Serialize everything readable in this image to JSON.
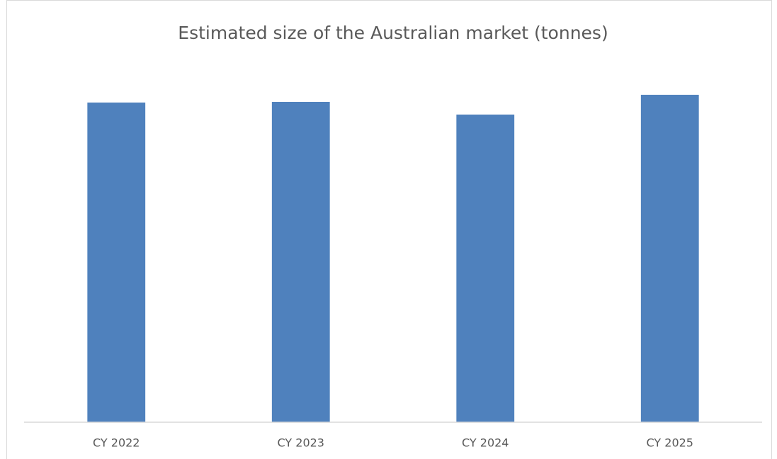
{
  "chart_data": {
    "type": "bar",
    "title": "Estimated size of the Australian market (tonnes)",
    "categories": [
      "CY 2022",
      "CY 2023",
      "CY 2024",
      "CY 2025"
    ],
    "values": [
      452,
      453,
      435,
      463
    ],
    "color": "#4f81bd",
    "ylim": [
      0,
      500
    ]
  }
}
